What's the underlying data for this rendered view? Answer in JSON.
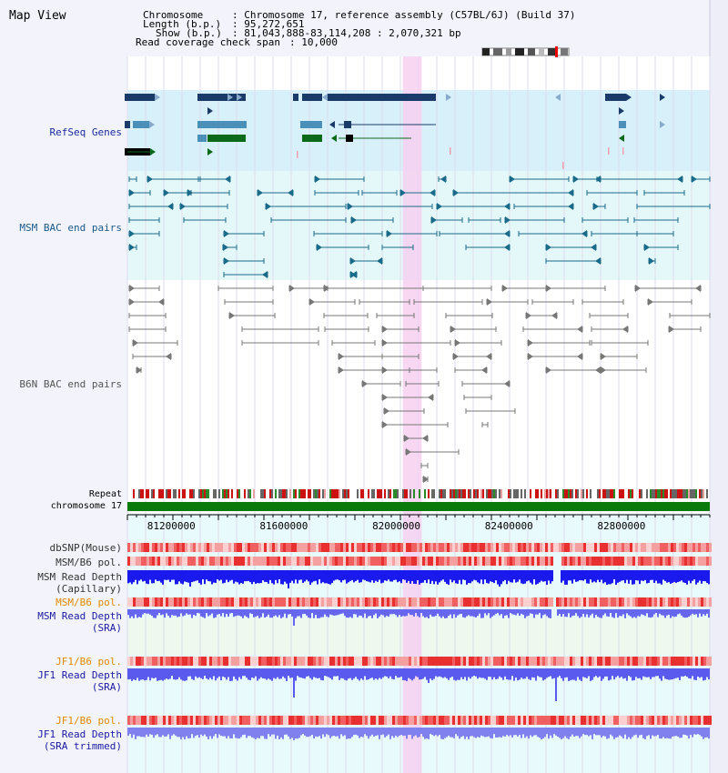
{
  "header": {
    "title": "Map View",
    "chromosome_key": "Chromosome",
    "chromosome_value": ": Chromosome 17, reference assembly (C57BL/6J) (Build 37)",
    "length_key": "Length (b.p.)",
    "length_value": ": 95,272,651",
    "show_key": "Show (b.p.)",
    "show_value": ": 81,043,888-83,114,208 : 2,070,321 bp",
    "coverage_key": "Read coverage check span",
    "coverage_value": ": 10,000"
  },
  "tracks": {
    "refseq": "RefSeq Genes",
    "msm_bac": "MSM BAC end pairs",
    "b6n_bac": "B6N BAC end pairs",
    "repeat": "Repeat",
    "chromosome": "chromosome 17",
    "dbsnp": "dbSNP(Mouse)",
    "msm_b6_pol_1": "MSM/B6 pol.",
    "msm_depth_cap_1": "MSM Read Depth",
    "msm_depth_cap_2": "(Capillary)",
    "msm_b6_pol_2": "MSM/B6 pol.",
    "msm_depth_sra_1": "MSM Read Depth",
    "msm_depth_sra_2": "(SRA)",
    "jf1_b6_pol_1": "JF1/B6 pol.",
    "jf1_depth_sra_1": "JF1 Read Depth",
    "jf1_depth_sra_2": "(SRA)",
    "jf1_b6_pol_2": "JF1/B6 pol.",
    "jf1_depth_trim_1": "JF1 Read Depth",
    "jf1_depth_trim_2": "(SRA trimmed)"
  },
  "axis": {
    "ticks": [
      "81200000",
      "81600000",
      "82000000",
      "82400000",
      "82800000"
    ],
    "tick_values": [
      81200000,
      81600000,
      82000000,
      82400000,
      82800000
    ],
    "range": [
      81043888,
      83114208
    ]
  },
  "highlight": {
    "start": 82023000,
    "end": 82090000,
    "color": "#f6d0f0"
  },
  "colors": {
    "gene_dark": "#1a3a6a",
    "gene_light": "#4a90b8",
    "gene_green": "#0a6a1a",
    "msm_bac": "#1a6a8a",
    "b6n_bac": "#777777",
    "chromosome": "#0a7a0a",
    "depth_blue": "#2222ee",
    "depth_light": "#7777ee"
  }
}
